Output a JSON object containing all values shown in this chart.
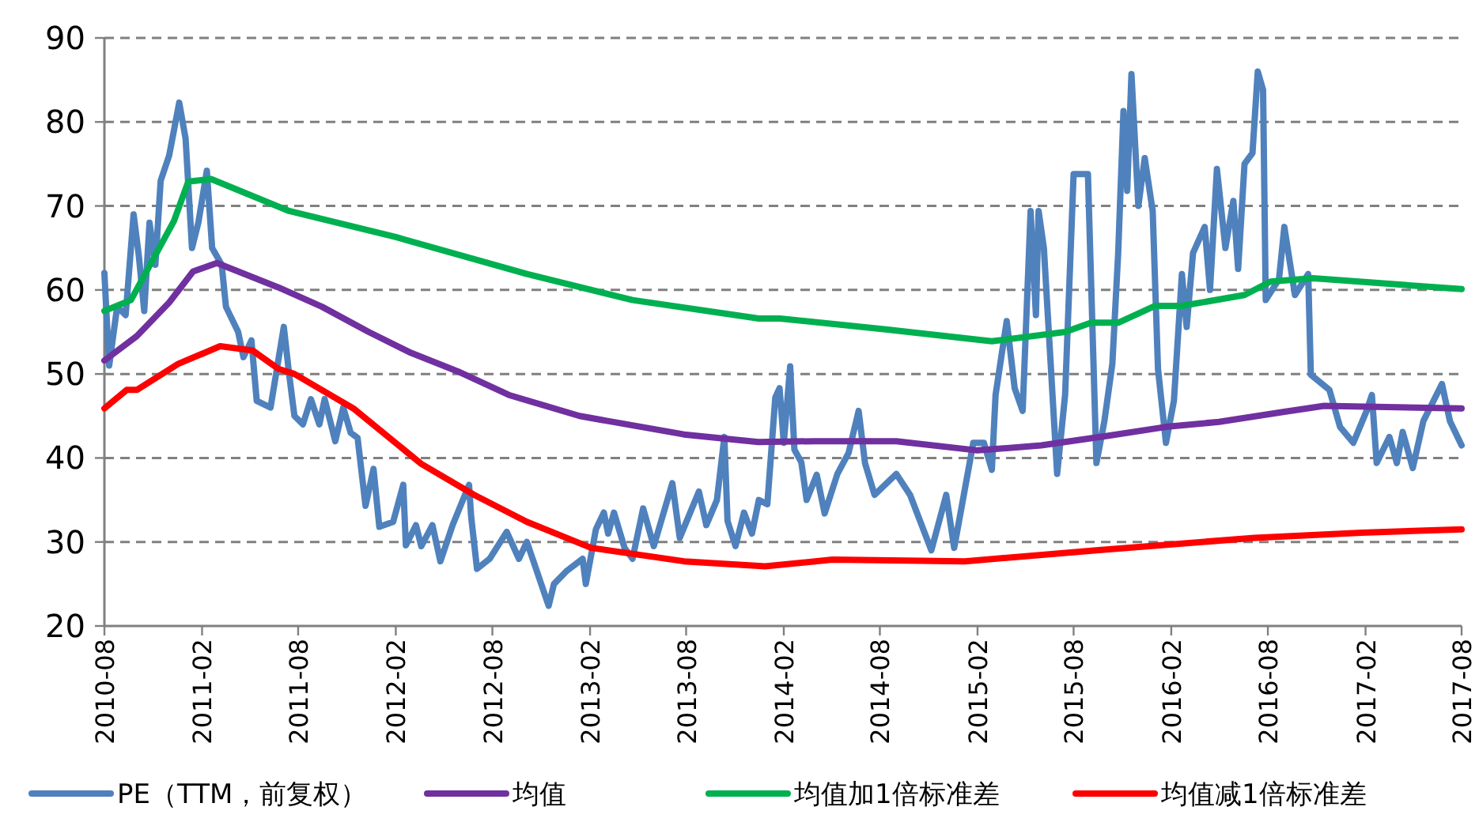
{
  "chart_data": {
    "type": "line",
    "xlim": [
      "2010-08",
      "2017-08"
    ],
    "ylim": [
      20,
      90
    ],
    "yticks": [
      20,
      30,
      40,
      50,
      60,
      70,
      80,
      90
    ],
    "xticks": [
      "2010-08",
      "2011-02",
      "2011-08",
      "2012-02",
      "2012-08",
      "2013-02",
      "2013-08",
      "2014-02",
      "2014-08",
      "2015-02",
      "2015-08",
      "2016-02",
      "2016-08",
      "2017-02",
      "2017-08"
    ],
    "grid": "y",
    "legend": "bottom",
    "line_style": "solid",
    "series": [
      {
        "name": "PE（TTM，前复权）",
        "color": "#4f81bd",
        "x": [
          "2010-08-01",
          "2010-08-10",
          "2010-08-25",
          "2010-09-10",
          "2010-09-25",
          "2010-10-05",
          "2010-10-15",
          "2010-10-25",
          "2010-11-05",
          "2010-11-15",
          "2010-12-01",
          "2010-12-20",
          "2011-01-01",
          "2011-01-13",
          "2011-01-25",
          "2011-02-10",
          "2011-02-20",
          "2011-03-10",
          "2011-03-18",
          "2011-04-10",
          "2011-04-20",
          "2011-05-05",
          "2011-05-15",
          "2011-06-10",
          "2011-07-05",
          "2011-07-15",
          "2011-07-25",
          "2011-08-10",
          "2011-08-25",
          "2011-09-10",
          "2011-09-20",
          "2011-10-10",
          "2011-10-25",
          "2011-11-08",
          "2011-11-21",
          "2011-12-06",
          "2011-12-21",
          "2012-01-01",
          "2012-01-27",
          "2012-02-15",
          "2012-02-20",
          "2012-03-10",
          "2012-03-20",
          "2012-04-10",
          "2012-04-25",
          "2012-05-18",
          "2012-06-18",
          "2012-06-22",
          "2012-07-03",
          "2012-07-27",
          "2012-08-28",
          "2012-09-20",
          "2012-10-05",
          "2012-11-15",
          "2012-11-25",
          "2012-12-18",
          "2013-01-18",
          "2013-01-24",
          "2013-02-12",
          "2013-02-27",
          "2013-03-07",
          "2013-03-18",
          "2013-04-07",
          "2013-04-22",
          "2013-05-12",
          "2013-06-01",
          "2013-07-06",
          "2013-07-20",
          "2013-08-25",
          "2013-09-08",
          "2013-09-28",
          "2013-10-12",
          "2013-10-18",
          "2013-11-02",
          "2013-11-18",
          "2013-12-03",
          "2013-12-16",
          "2014-01-01",
          "2014-01-16",
          "2014-01-24",
          "2014-02-01",
          "2014-02-13",
          "2014-02-21",
          "2014-03-06",
          "2014-03-16",
          "2014-04-04",
          "2014-04-19",
          "2014-05-13",
          "2014-06-03",
          "2014-06-22",
          "2014-07-04",
          "2014-07-22",
          "2014-09-01",
          "2014-09-27",
          "2014-11-06",
          "2014-12-04",
          "2014-12-19",
          "2015-01-24",
          "2015-02-13",
          "2015-02-28",
          "2015-03-07",
          "2015-03-28",
          "2015-04-12",
          "2015-04-27",
          "2015-05-12",
          "2015-05-22",
          "2015-05-27",
          "2015-06-06",
          "2015-07-01",
          "2015-07-16",
          "2015-08-01",
          "2015-08-28",
          "2015-09-13",
          "2015-09-28",
          "2015-10-13",
          "2015-10-24",
          "2015-11-03",
          "2015-11-10",
          "2015-11-18",
          "2015-12-01",
          "2015-12-13",
          "2015-12-28",
          "2016-01-07",
          "2016-01-22",
          "2016-02-06",
          "2016-02-21",
          "2016-03-01",
          "2016-03-13",
          "2016-04-04",
          "2016-04-14",
          "2016-04-27",
          "2016-05-13",
          "2016-05-28",
          "2016-06-06",
          "2016-06-18",
          "2016-07-03",
          "2016-07-13",
          "2016-07-23",
          "2016-07-28",
          "2016-08-22",
          "2016-09-01",
          "2016-09-21",
          "2016-10-16",
          "2016-10-21",
          "2016-11-25",
          "2016-12-15",
          "2017-01-09",
          "2017-02-03",
          "2017-02-13",
          "2017-02-22",
          "2017-03-18",
          "2017-04-01",
          "2017-04-12",
          "2017-05-01",
          "2017-05-21",
          "2017-06-25",
          "2017-07-10",
          "2017-08-01"
        ],
        "values": [
          62,
          51,
          58,
          57,
          69,
          64,
          57.5,
          68,
          63,
          73,
          76,
          82.3,
          78,
          65,
          68,
          74.2,
          65,
          63,
          58,
          55,
          52,
          54,
          46.8,
          46,
          55.6,
          50,
          45,
          44,
          47,
          44,
          47,
          42,
          46,
          43,
          42.4,
          34.3,
          38.7,
          31.8,
          32.4,
          36.8,
          29.6,
          32,
          29.5,
          32,
          27.7,
          32,
          36.8,
          33,
          26.8,
          28,
          31.2,
          28,
          30,
          22.4,
          25,
          26.5,
          28,
          25,
          31.5,
          33.5,
          31,
          33.5,
          29.3,
          28,
          34,
          29.5,
          37,
          30.5,
          36,
          32,
          35,
          42.5,
          32.5,
          29.5,
          33.5,
          31,
          35,
          34.5,
          47.2,
          48.3,
          41.8,
          50.9,
          41,
          39.5,
          35,
          38,
          33.4,
          38.1,
          40.6,
          45.6,
          39.4,
          35.6,
          38.1,
          35.6,
          29,
          35.6,
          29.3,
          41.8,
          41.8,
          38.6,
          47.5,
          56.3,
          48.3,
          45.6,
          69.4,
          57,
          69.4,
          65,
          38.1,
          47.5,
          73.8,
          73.8,
          39.4,
          44.4,
          51.2,
          64.4,
          81.3,
          71.8,
          85.7,
          70,
          75.7,
          69.4,
          50.6,
          41.8,
          46.8,
          61.9,
          55.6,
          64.4,
          67.5,
          60,
          74.4,
          65,
          70.6,
          62.5,
          75,
          76.3,
          86,
          83.8,
          58.8,
          61.3,
          67.5,
          59.4,
          61.9,
          49.9,
          48.1,
          43.7,
          41.8,
          45.6,
          47.5,
          39.4,
          42.5,
          39.4,
          43.1,
          38.8,
          44.4,
          48.8,
          44.4,
          41.5
        ]
      },
      {
        "name": "均值",
        "color": "#7030a0",
        "x": [
          "2010-08-01",
          "2010-10-01",
          "2010-12-01",
          "2011-01-15",
          "2011-03-01",
          "2011-06-25",
          "2011-09-15",
          "2011-12-12",
          "2012-03-01",
          "2012-05-28",
          "2012-09-01",
          "2013-01-12",
          "2013-07-28",
          "2013-12-15",
          "2014-04-01",
          "2014-09-01",
          "2015-02-01",
          "2015-06-01",
          "2015-10-01",
          "2016-01-22",
          "2016-05-01",
          "2016-09-01",
          "2016-11-15",
          "2017-08-01"
        ],
        "values": [
          51.6,
          54.5,
          58.5,
          62.2,
          63.2,
          60.3,
          58,
          55,
          52.5,
          50.3,
          47.5,
          45,
          42.8,
          41.9,
          42,
          42,
          40.9,
          41.5,
          42.6,
          43.7,
          44.3,
          45.5,
          46.2,
          45.9
        ]
      },
      {
        "name": "均值加1倍标准差",
        "color": "#00b050",
        "x": [
          "2010-08-01",
          "2010-09-20",
          "2010-12-10",
          "2011-01-06",
          "2011-02-18",
          "2011-07-15",
          "2012-02-01",
          "2012-10-05",
          "2013-04-22",
          "2013-12-16",
          "2014-01-25",
          "2014-08-12",
          "2015-02-28",
          "2015-07-16",
          "2015-09-03",
          "2015-10-24",
          "2016-01-01",
          "2016-02-21",
          "2016-06-18",
          "2016-08-06",
          "2016-10-25",
          "2017-08-01"
        ],
        "values": [
          57.5,
          58.8,
          68.2,
          72.9,
          73.2,
          69.4,
          66.3,
          61.9,
          58.8,
          56.6,
          56.6,
          55.3,
          53.9,
          55,
          56.1,
          56.1,
          58.1,
          58.1,
          59.4,
          61,
          61.4,
          60.1
        ]
      },
      {
        "name": "均值减1倍标准差",
        "color": "#ff0000",
        "x": [
          "2010-08-01",
          "2010-09-12",
          "2010-10-01",
          "2010-12-18",
          "2011-03-07",
          "2011-05-07",
          "2011-06-25",
          "2011-07-25",
          "2011-11-13",
          "2012-03-20",
          "2012-06-28",
          "2012-10-05",
          "2013-02-03",
          "2013-07-28",
          "2013-12-28",
          "2014-05-04",
          "2015-01-08",
          "2015-09-13",
          "2016-07-07",
          "2017-01-24",
          "2017-08-01"
        ],
        "values": [
          45.9,
          48.1,
          48.1,
          51.2,
          53.3,
          52.8,
          50.6,
          50,
          45.9,
          39.3,
          35.6,
          32.4,
          29.3,
          27.7,
          27.1,
          27.9,
          27.7,
          29,
          30.5,
          31.1,
          31.5
        ]
      }
    ]
  }
}
